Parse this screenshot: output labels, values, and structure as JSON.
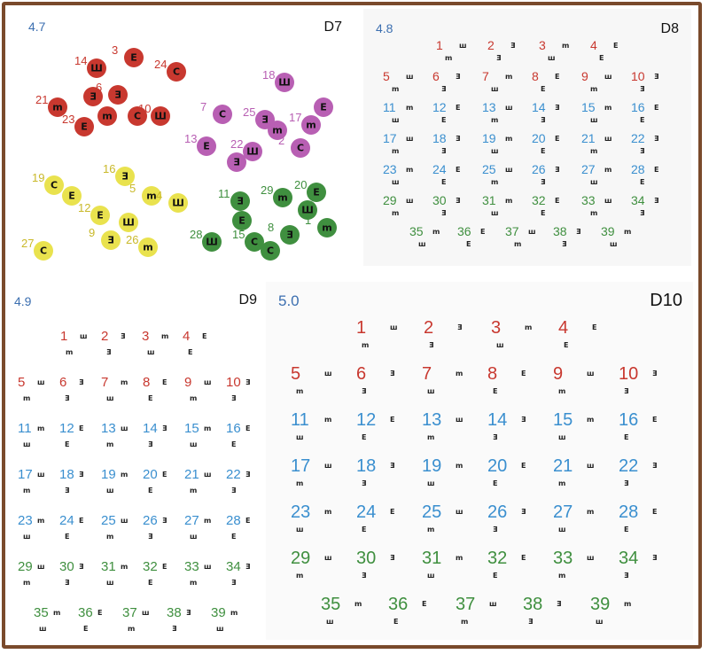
{
  "colors": {
    "border": "#7a4a2c",
    "red": "#c8382f",
    "blue": "#3a8fcf",
    "green": "#3f8f3f",
    "purple": "#b85fb3",
    "yellow": "#e9e24e",
    "olive": "#6aa843"
  },
  "panels": [
    {
      "id": "D7",
      "code": "D7",
      "acuity": "4.7"
    },
    {
      "id": "D8",
      "code": "D8",
      "acuity": "4.8"
    },
    {
      "id": "D9",
      "code": "D9",
      "acuity": "4.9"
    },
    {
      "id": "D10",
      "code": "D10",
      "acuity": "5.0"
    }
  ],
  "d7_groups": [
    {
      "color": "red",
      "labels": [
        "3",
        "14",
        "24",
        "6",
        "21",
        "23",
        "10"
      ]
    },
    {
      "color": "purple",
      "labels": [
        "18",
        "7",
        "25",
        "17",
        "13",
        "22",
        "2"
      ]
    },
    {
      "color": "yellow",
      "labels": [
        "19",
        "16",
        "5",
        "12",
        "4",
        "27",
        "9",
        "26"
      ]
    },
    {
      "color": "green",
      "labels": [
        "11",
        "29",
        "20",
        "28",
        "15",
        "8",
        "1"
      ]
    }
  ],
  "grid_numbers": [
    "1",
    "2",
    "3",
    "4",
    "5",
    "6",
    "7",
    "8",
    "9",
    "10",
    "11",
    "12",
    "13",
    "14",
    "15",
    "16",
    "17",
    "18",
    "19",
    "20",
    "21",
    "22",
    "23",
    "24",
    "25",
    "26",
    "27",
    "28",
    "29",
    "30",
    "31",
    "32",
    "33",
    "34",
    "35",
    "36",
    "37",
    "38",
    "39"
  ]
}
